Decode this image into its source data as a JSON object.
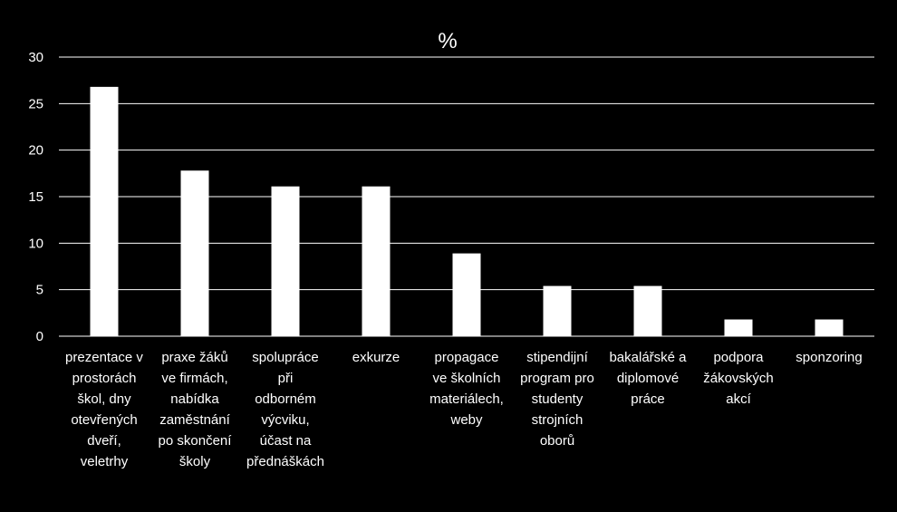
{
  "chart_data": {
    "type": "bar",
    "title": "%",
    "xlabel": "",
    "ylabel": "",
    "ylim": [
      0,
      30
    ],
    "yticks": [
      0,
      5,
      10,
      15,
      20,
      25,
      30
    ],
    "grid": true,
    "legend": "none",
    "categories": [
      [
        "prezentace v",
        "prostorách",
        "škol, dny",
        "otevřených",
        "dveří,",
        "veletrhy"
      ],
      [
        "praxe žáků",
        "ve firmách,",
        "nabídka",
        "zaměstnání",
        "po skončení",
        "školy"
      ],
      [
        "spolupráce",
        "při",
        "odborném",
        "výcviku,",
        "účast na",
        "přednáškách"
      ],
      [
        "exkurze"
      ],
      [
        "propagace",
        "ve školních",
        "materiálech,",
        "weby"
      ],
      [
        "stipendijní",
        "program pro",
        "studenty",
        "strojních",
        "oborů"
      ],
      [
        "bakalářské a",
        "diplomové",
        "práce"
      ],
      [
        "podpora",
        "žákovských",
        "akcí"
      ],
      [
        "sponzoring"
      ]
    ],
    "values": [
      26.8,
      17.8,
      16.1,
      16.1,
      8.9,
      5.4,
      5.4,
      1.8,
      1.8
    ]
  },
  "colors": {
    "background": "#000000",
    "bar": "#ffffff",
    "grid": "#ffffff",
    "text": "#ffffff"
  }
}
